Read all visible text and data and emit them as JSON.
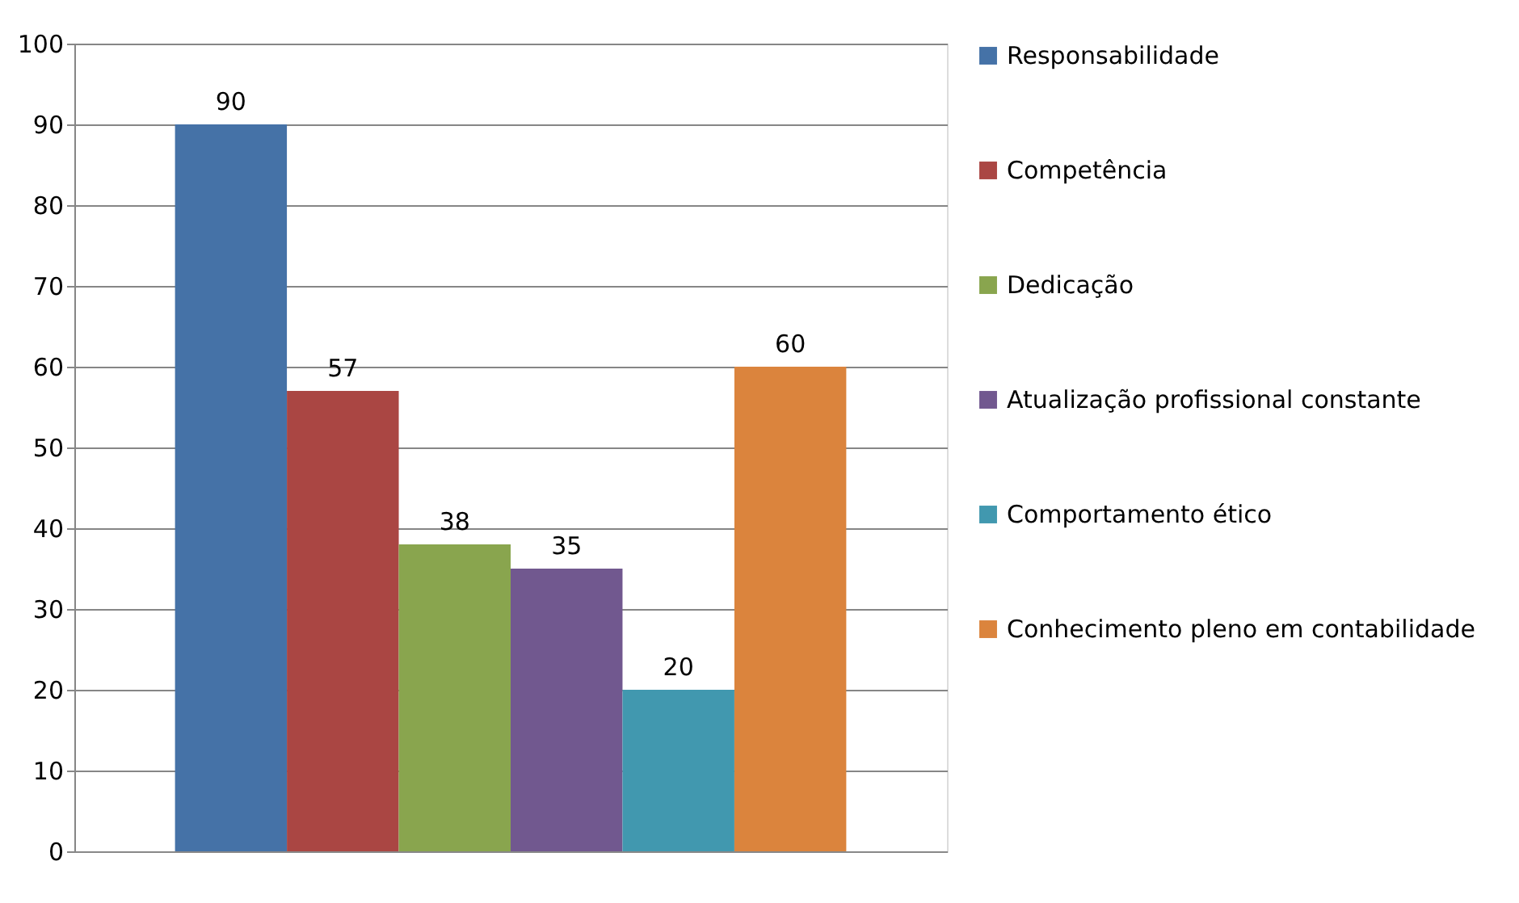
{
  "chart_data": {
    "type": "bar",
    "categories": [
      null
    ],
    "series": [
      {
        "name": "Responsabilidade",
        "color": "#4572a7",
        "values": [
          90
        ]
      },
      {
        "name": "Competência",
        "color": "#aa4643",
        "values": [
          57
        ]
      },
      {
        "name": "Dedicação",
        "color": "#89a54e",
        "values": [
          38
        ]
      },
      {
        "name": "Atualização profissional constante",
        "color": "#71588f",
        "values": [
          35
        ]
      },
      {
        "name": "Comportamento ético",
        "color": "#4198af",
        "values": [
          20
        ]
      },
      {
        "name": "Conhecimento pleno em contabilidade",
        "color": "#db843d",
        "values": [
          60
        ]
      }
    ],
    "ylim": [
      0,
      100
    ],
    "yticks": [
      0,
      10,
      20,
      30,
      40,
      50,
      60,
      70,
      80,
      90,
      100
    ],
    "grid": "y",
    "legend": "right",
    "data_labels": true,
    "tick_labels": "y"
  }
}
